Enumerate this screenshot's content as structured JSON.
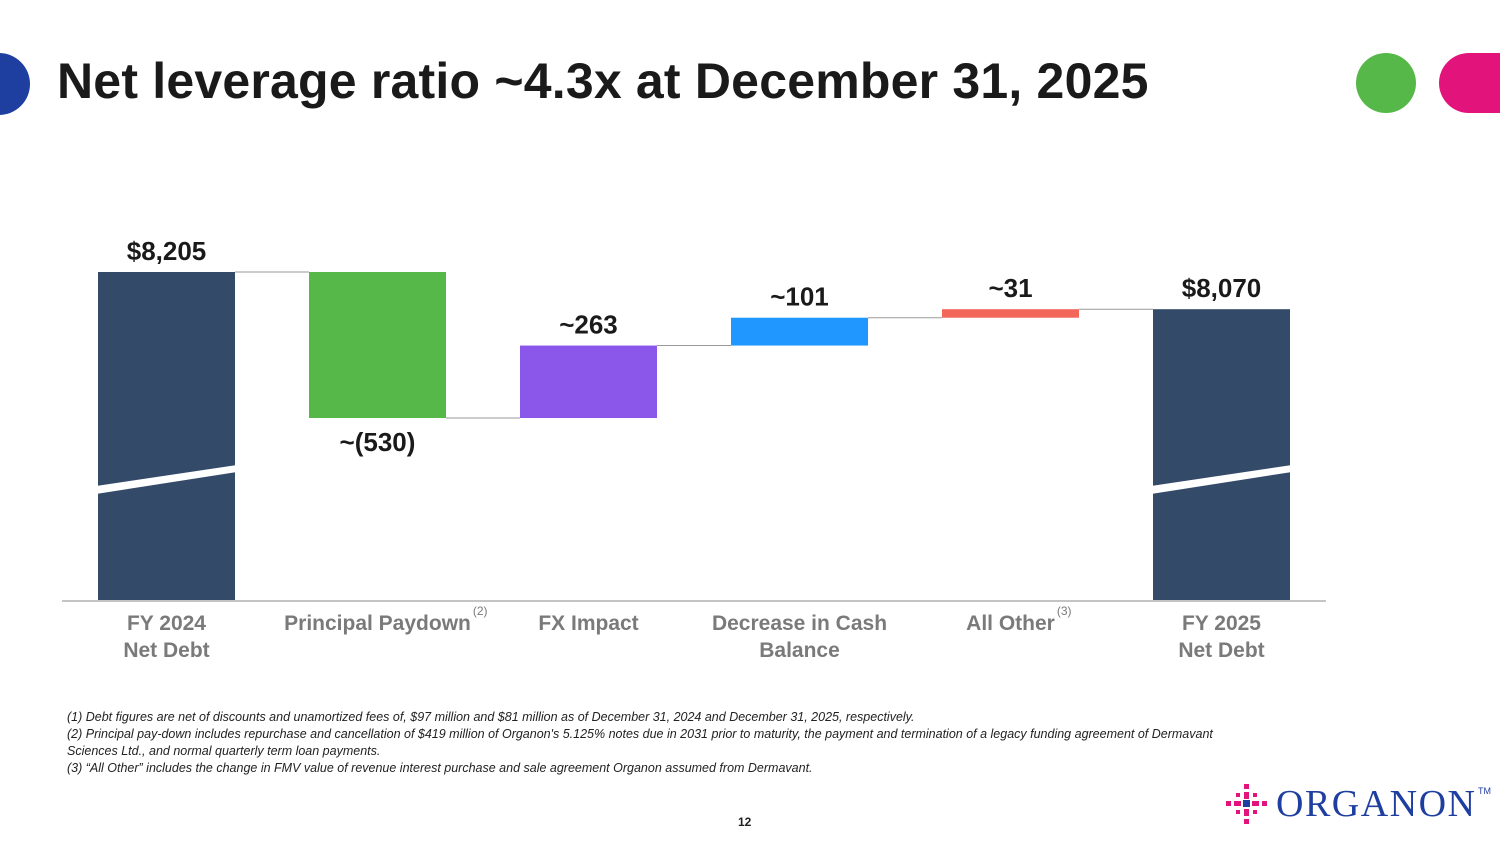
{
  "title": "Net leverage ratio ~4.3x at December 31, 2025",
  "colors": {
    "navy": "#344a69",
    "green": "#57b84a",
    "purple": "#8b57ea",
    "blue": "#1f97ff",
    "coral": "#f2675a",
    "brand_blue": "#1f3fa0",
    "brand_pink": "#e2137a",
    "label_gray": "#7a7a7a"
  },
  "chart_data": {
    "type": "waterfall",
    "axis_broken": true,
    "categories": [
      {
        "lines": [
          "FY 2024",
          "Net Debt"
        ],
        "sup": ""
      },
      {
        "lines": [
          "Principal Paydown"
        ],
        "sup": "(2)"
      },
      {
        "lines": [
          "FX Impact"
        ],
        "sup": ""
      },
      {
        "lines": [
          "Decrease in Cash",
          "Balance"
        ],
        "sup": ""
      },
      {
        "lines": [
          "All Other"
        ],
        "sup": "(3)"
      },
      {
        "lines": [
          "FY 2025",
          "Net Debt"
        ],
        "sup": ""
      }
    ],
    "bars": [
      {
        "kind": "total",
        "value": 8205,
        "label": "$8,205",
        "color": "#344a69"
      },
      {
        "kind": "delta",
        "value": -530,
        "label": "~(530)",
        "color": "#57b84a"
      },
      {
        "kind": "delta",
        "value": 263,
        "label": "~263",
        "color": "#8b57ea"
      },
      {
        "kind": "delta",
        "value": 101,
        "label": "~101",
        "color": "#1f97ff"
      },
      {
        "kind": "delta",
        "value": 31,
        "label": "~31",
        "color": "#f2675a"
      },
      {
        "kind": "total",
        "value": 8070,
        "label": "$8,070",
        "color": "#344a69"
      }
    ]
  },
  "footnotes": [
    "(1) Debt figures are net of discounts and unamortized fees of, $97 million and $81 million as of December 31, 2024 and December 31, 2025, respectively.",
    "(2) Principal pay-down includes repurchase and cancellation of $419 million of Organon's 5.125% notes due in 2031 prior to maturity, the payment and termination of a legacy funding agreement of Dermavant Sciences Ltd., and normal quarterly term loan payments.",
    "(3) “All Other” includes the change in FMV value of revenue interest purchase and sale agreement Organon assumed from Dermavant."
  ],
  "page_number": "12",
  "logo": {
    "text": "ORGANON",
    "tm": "TM"
  }
}
